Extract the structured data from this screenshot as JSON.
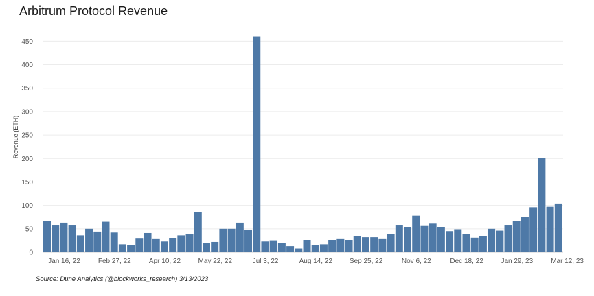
{
  "title": "Arbitrum Protocol Revenue",
  "source": "Source: Dune Analytics (@blockworks_research) 3/13/2023",
  "colors": {
    "bar": "#4e79a7",
    "grid": "#ececec",
    "axis": "#cfcfcf"
  },
  "chart_data": {
    "type": "bar",
    "title": "Arbitrum Protocol Revenue",
    "ylabel": "Revenue (ETH)",
    "xlabel": "",
    "ylim": [
      0,
      460
    ],
    "yticks": [
      0,
      50,
      100,
      150,
      200,
      250,
      300,
      350,
      400,
      450
    ],
    "grid": "horizontal",
    "xtick_labels": [
      {
        "label": "Jan 16, 22",
        "index": 2
      },
      {
        "label": "Feb 27, 22",
        "index": 8
      },
      {
        "label": "Apr 10, 22",
        "index": 14
      },
      {
        "label": "May 22, 22",
        "index": 20
      },
      {
        "label": "Jul 3, 22",
        "index": 26
      },
      {
        "label": "Aug 14, 22",
        "index": 32
      },
      {
        "label": "Sep 25, 22",
        "index": 38
      },
      {
        "label": "Nov 6, 22",
        "index": 44
      },
      {
        "label": "Dec 18, 22",
        "index": 50
      },
      {
        "label": "Jan 29, 23",
        "index": 56
      },
      {
        "label": "Mar 12, 23",
        "index": 62
      }
    ],
    "values": [
      66,
      57,
      63,
      57,
      36,
      50,
      44,
      65,
      42,
      17,
      16,
      29,
      41,
      28,
      23,
      30,
      36,
      38,
      85,
      19,
      22,
      50,
      50,
      63,
      47,
      460,
      23,
      24,
      20,
      13,
      8,
      26,
      15,
      17,
      25,
      28,
      26,
      35,
      32,
      32,
      28,
      39,
      57,
      54,
      78,
      56,
      61,
      54,
      45,
      49,
      39,
      31,
      35,
      50,
      46,
      57,
      66,
      76,
      96,
      201,
      97,
      104
    ]
  }
}
